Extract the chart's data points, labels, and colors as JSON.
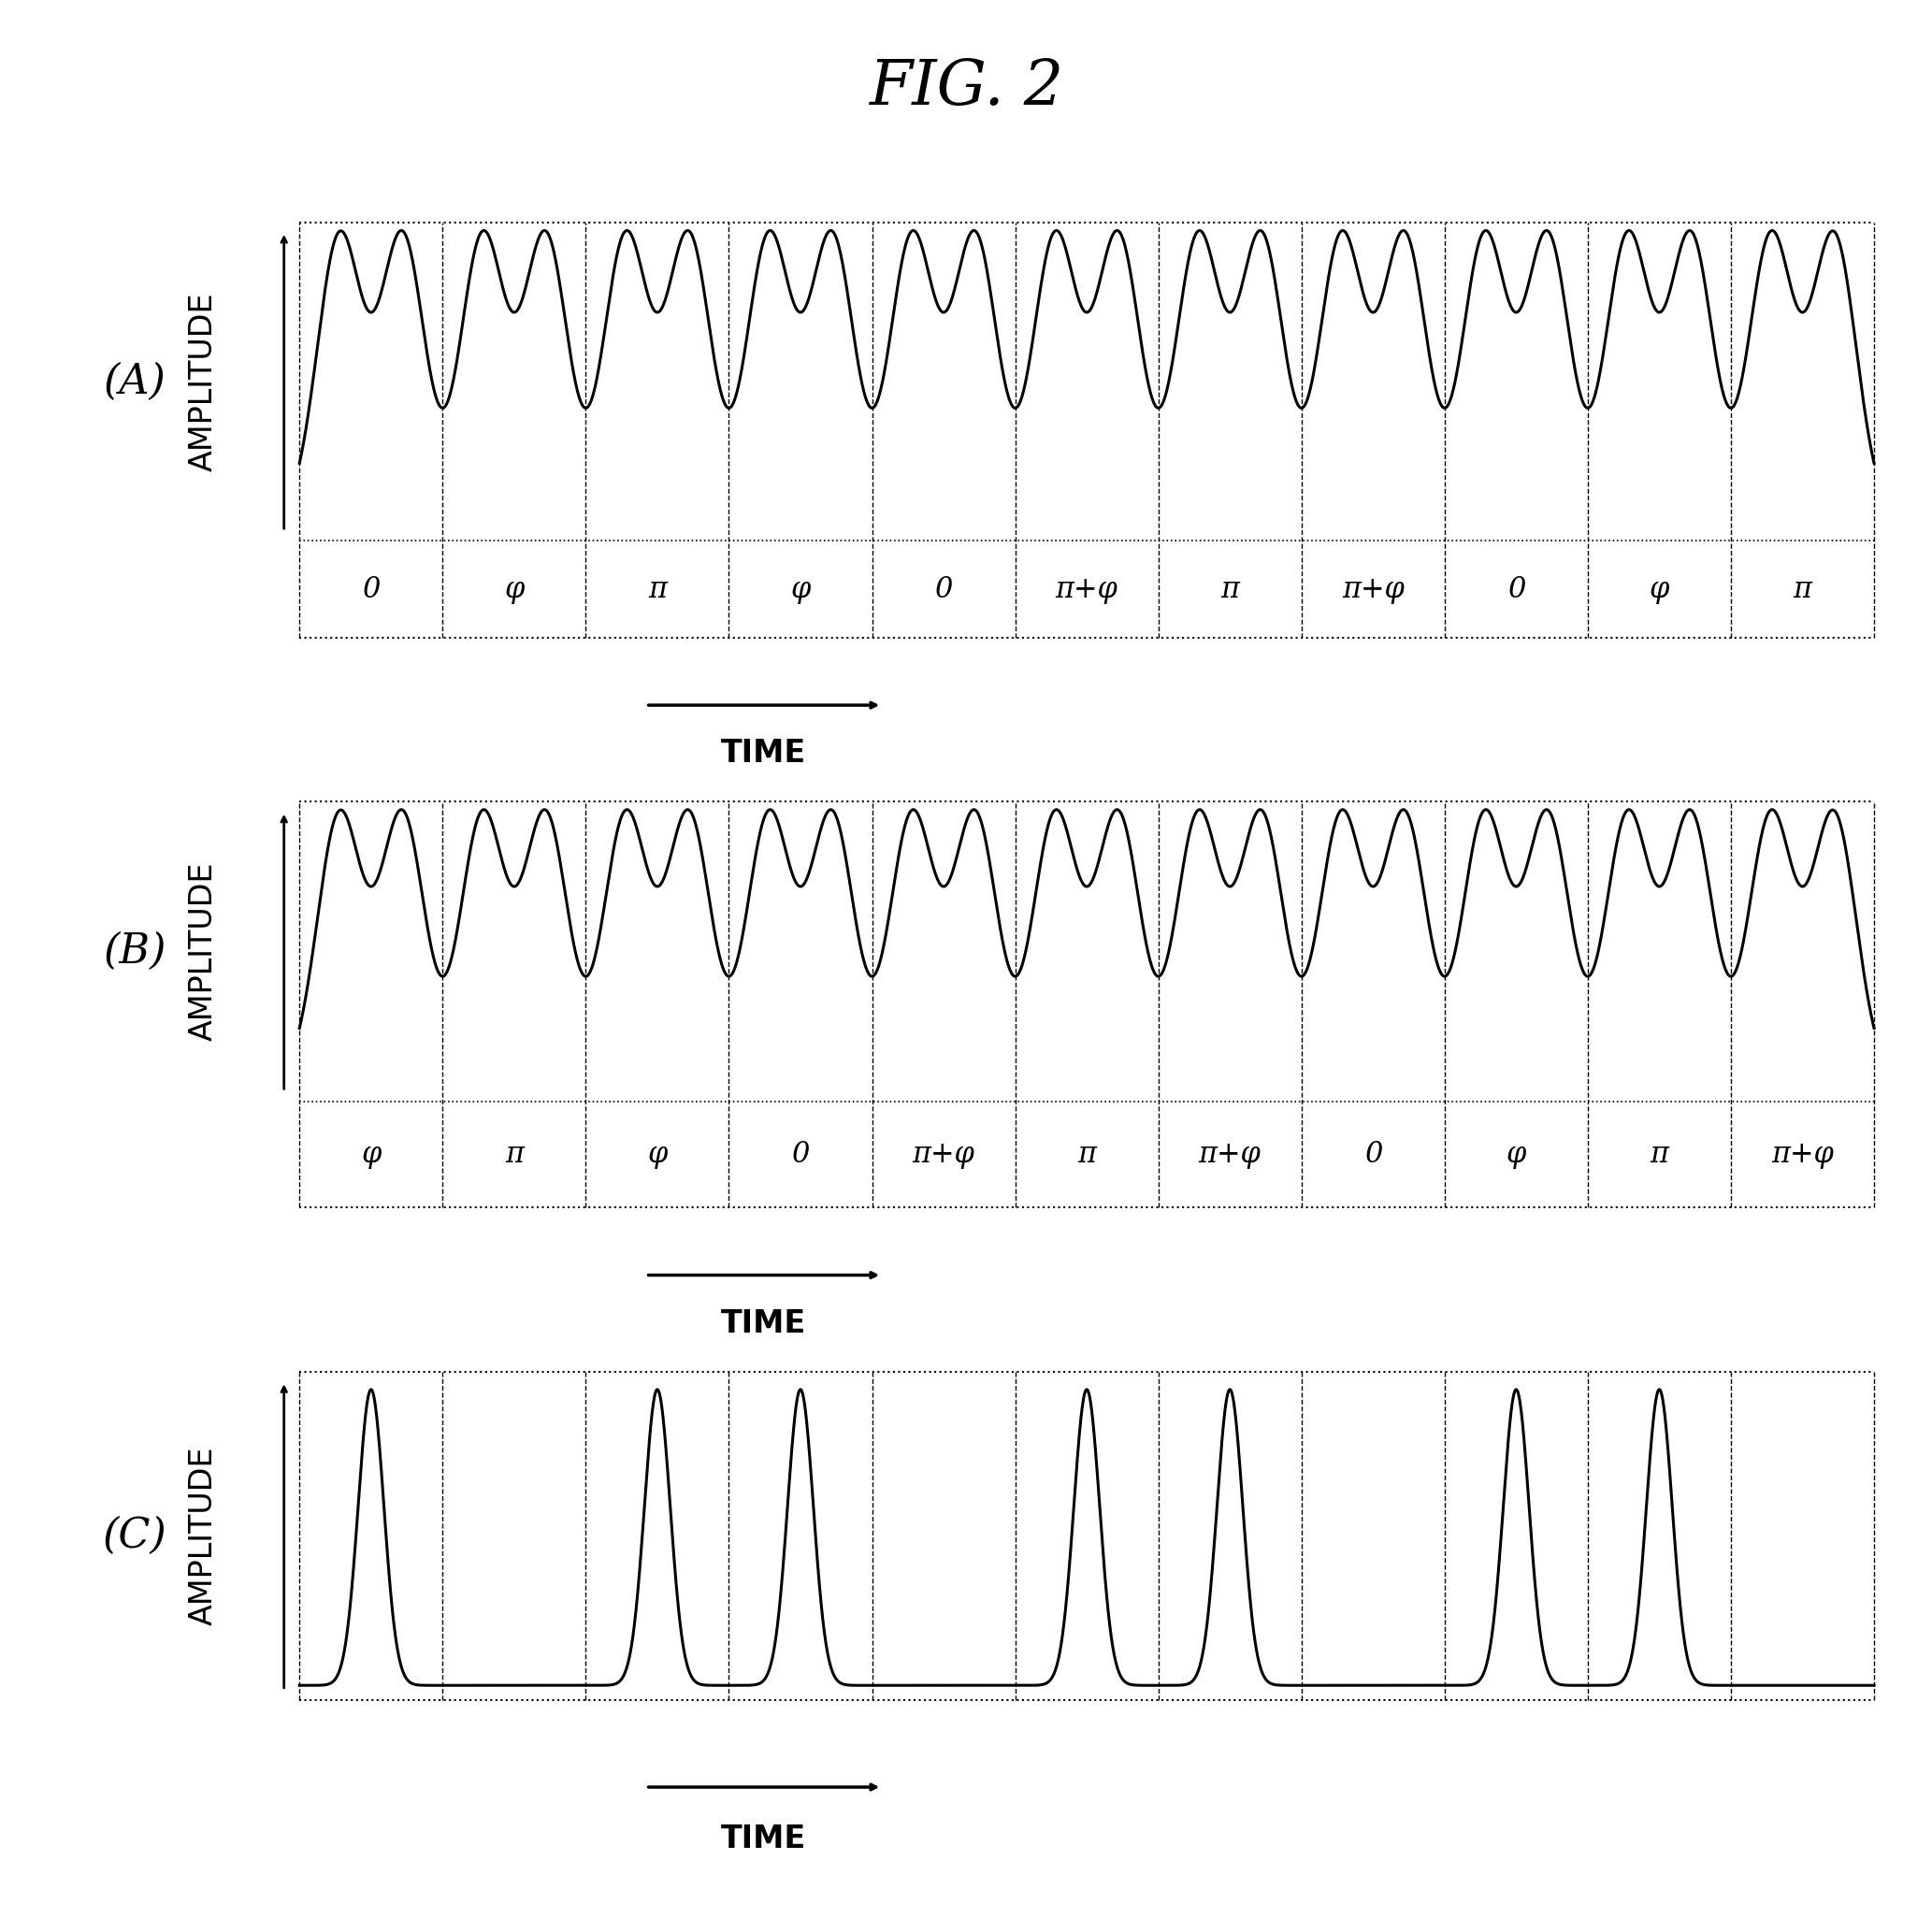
{
  "title": "FIG. 2",
  "panel_labels": [
    "(A)",
    "(B)",
    "(C)"
  ],
  "panel_A_phases": [
    "0",
    "φ",
    "π",
    "φ",
    "0",
    "π+φ",
    "π",
    "π+φ",
    "0",
    "φ",
    "π"
  ],
  "panel_B_phases": [
    "φ",
    "π",
    "φ",
    "0",
    "π+φ",
    "π",
    "π+φ",
    "0",
    "φ",
    "π",
    "π+φ"
  ],
  "num_cells": 11,
  "background_color": "#ffffff",
  "line_color": "#000000",
  "title_fontsize": 48,
  "label_fontsize": 24,
  "phase_fontsize": 22,
  "panel_label_fontsize": 32,
  "ylabel": "AMPLITUDE",
  "time_label": "TIME"
}
